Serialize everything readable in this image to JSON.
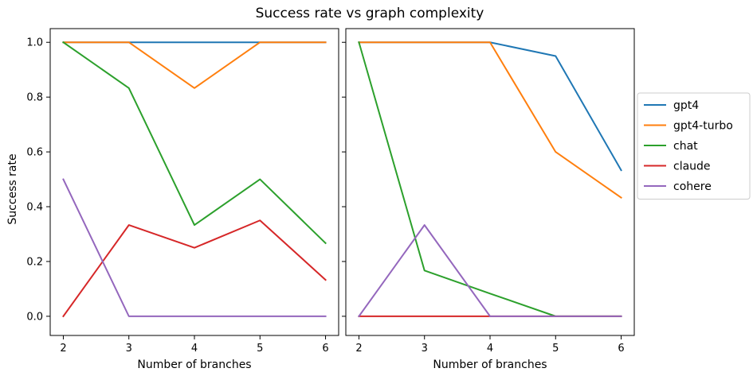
{
  "chart_data": {
    "type": "line",
    "title": "Success rate vs graph complexity",
    "ylabel": "Success rate",
    "ylim": [
      -0.07,
      1.05
    ],
    "yticks": [
      0.0,
      0.2,
      0.4,
      0.6,
      0.8,
      1.0
    ],
    "ytick_labels": [
      "0.0",
      "0.2",
      "0.4",
      "0.6",
      "0.8",
      "1.0"
    ],
    "xlim": [
      1.8,
      6.2
    ],
    "x": [
      2,
      3,
      4,
      5,
      6
    ],
    "xtick_labels": [
      "2",
      "3",
      "4",
      "5",
      "6"
    ],
    "grid": false,
    "legend_placement": "right",
    "colors": {
      "gpt4": "#1f77b4",
      "gpt4-turbo": "#ff7f0e",
      "chat": "#2ca02c",
      "claude": "#d62728",
      "cohere": "#9467bd"
    },
    "panels": [
      {
        "xlabel": "Number of branches",
        "series": [
          {
            "name": "gpt4",
            "values": [
              1.0,
              1.0,
              1.0,
              1.0,
              1.0
            ]
          },
          {
            "name": "gpt4-turbo",
            "values": [
              1.0,
              1.0,
              0.833,
              1.0,
              1.0
            ]
          },
          {
            "name": "chat",
            "values": [
              1.0,
              0.833,
              0.333,
              0.5,
              0.267
            ]
          },
          {
            "name": "claude",
            "values": [
              0.0,
              0.333,
              0.25,
              0.35,
              0.133
            ]
          },
          {
            "name": "cohere",
            "values": [
              0.5,
              0.0,
              0.0,
              0.0,
              0.0
            ]
          }
        ]
      },
      {
        "xlabel": "Number of branches",
        "series": [
          {
            "name": "gpt4",
            "values": [
              1.0,
              1.0,
              1.0,
              0.95,
              0.533
            ]
          },
          {
            "name": "gpt4-turbo",
            "values": [
              1.0,
              1.0,
              1.0,
              0.6,
              0.433
            ]
          },
          {
            "name": "chat",
            "values": [
              1.0,
              0.167,
              0.083,
              0.0,
              0.0
            ]
          },
          {
            "name": "claude",
            "values": [
              0.0,
              0.0,
              0.0,
              0.0,
              0.0
            ]
          },
          {
            "name": "cohere",
            "values": [
              0.0,
              0.333,
              0.0,
              0.0,
              0.0
            ]
          }
        ]
      }
    ],
    "legend": [
      "gpt4",
      "gpt4-turbo",
      "chat",
      "claude",
      "cohere"
    ]
  }
}
